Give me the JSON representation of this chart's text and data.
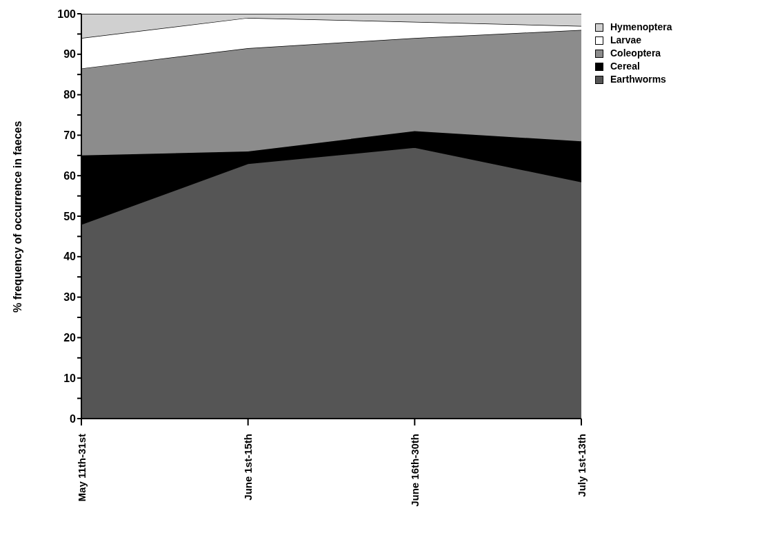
{
  "chart_data": {
    "type": "area",
    "stacked": true,
    "ylabel": "% frequency of occurrence in faeces",
    "categories": [
      "May 11th-31st",
      "June 1st-15th",
      "June 16th-30th",
      "July 1st-13th"
    ],
    "series": [
      {
        "name": "Earthworms",
        "color": "#555555",
        "values": [
          48,
          63,
          67,
          58.5
        ]
      },
      {
        "name": "Cereal",
        "color": "#000000",
        "values": [
          17,
          3,
          4,
          10
        ]
      },
      {
        "name": "Coleoptera",
        "color": "#8c8c8c",
        "values": [
          21.5,
          25.5,
          23,
          27.5
        ]
      },
      {
        "name": "Larvae",
        "color": "#ffffff",
        "values": [
          7.5,
          7.5,
          4,
          1
        ]
      },
      {
        "name": "Hymenoptera",
        "color": "#d0d0d0",
        "values": [
          6,
          1,
          2,
          3
        ]
      }
    ],
    "ylim": [
      0,
      100
    ],
    "yticks": [
      0,
      {
        "value": 5,
        "label": null
      },
      10,
      {
        "value": 15,
        "label": null
      },
      20,
      {
        "value": 25,
        "label": null
      },
      30,
      {
        "value": 35,
        "label": null
      },
      40,
      {
        "value": 45,
        "label": null
      },
      50,
      {
        "value": 55,
        "label": null
      },
      60,
      {
        "value": 65,
        "label": null
      },
      70,
      {
        "value": 75,
        "label": null
      },
      80,
      {
        "value": 85,
        "label": null
      },
      90,
      {
        "value": 95,
        "label": null
      },
      100
    ],
    "grid": false,
    "legend": "top right"
  }
}
